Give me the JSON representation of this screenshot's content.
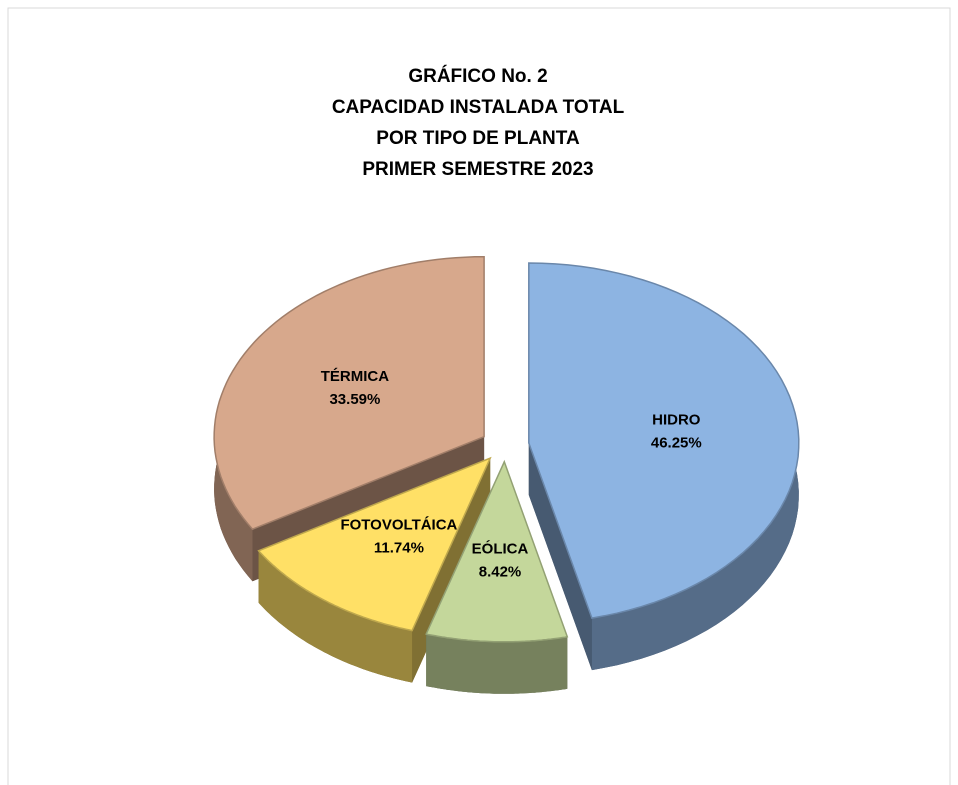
{
  "chart_data": {
    "type": "pie3d",
    "title": [
      "GRÁFICO No. 2",
      "CAPACIDAD INSTALADA TOTAL",
      "POR TIPO DE PLANTA",
      "PRIMER  SEMESTRE  2023"
    ],
    "categories": [
      "HIDRO",
      "EÓLICA",
      "FOTOVOLTÁICA",
      "TÉRMICA"
    ],
    "values": [
      46.25,
      8.42,
      11.74,
      33.59
    ],
    "value_labels": [
      "46.25%",
      "8.42%",
      "11.74%",
      "33.59%"
    ],
    "colors": [
      "#8db4e2",
      "#c4d79b",
      "#ffe066",
      "#d7a88c"
    ]
  }
}
